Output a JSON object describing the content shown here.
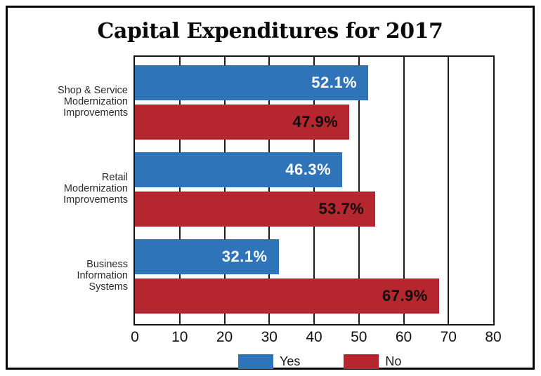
{
  "chart_data": {
    "type": "bar",
    "orientation": "horizontal",
    "title": "Capital Expenditures for 2017",
    "categories": [
      "Shop & Service\nModernization\nImprovements",
      "Retail\nModernization\nImprovements",
      "Business\nInformation\nSystems"
    ],
    "series": [
      {
        "name": "Yes",
        "color": "#2F74B9",
        "label_color": "#ffffff",
        "values": [
          52.1,
          46.3,
          32.1
        ]
      },
      {
        "name": "No",
        "color": "#B5262E",
        "label_color": "#0d0d0d",
        "values": [
          47.9,
          53.7,
          67.9
        ]
      }
    ],
    "value_suffix": "%",
    "xlim": [
      0,
      80
    ],
    "xticks": [
      0,
      10,
      20,
      30,
      40,
      50,
      60,
      70,
      80
    ],
    "grid": true,
    "legend_position": "bottom",
    "frame_color": "#000000",
    "grid_color": "#1c1c1c"
  }
}
